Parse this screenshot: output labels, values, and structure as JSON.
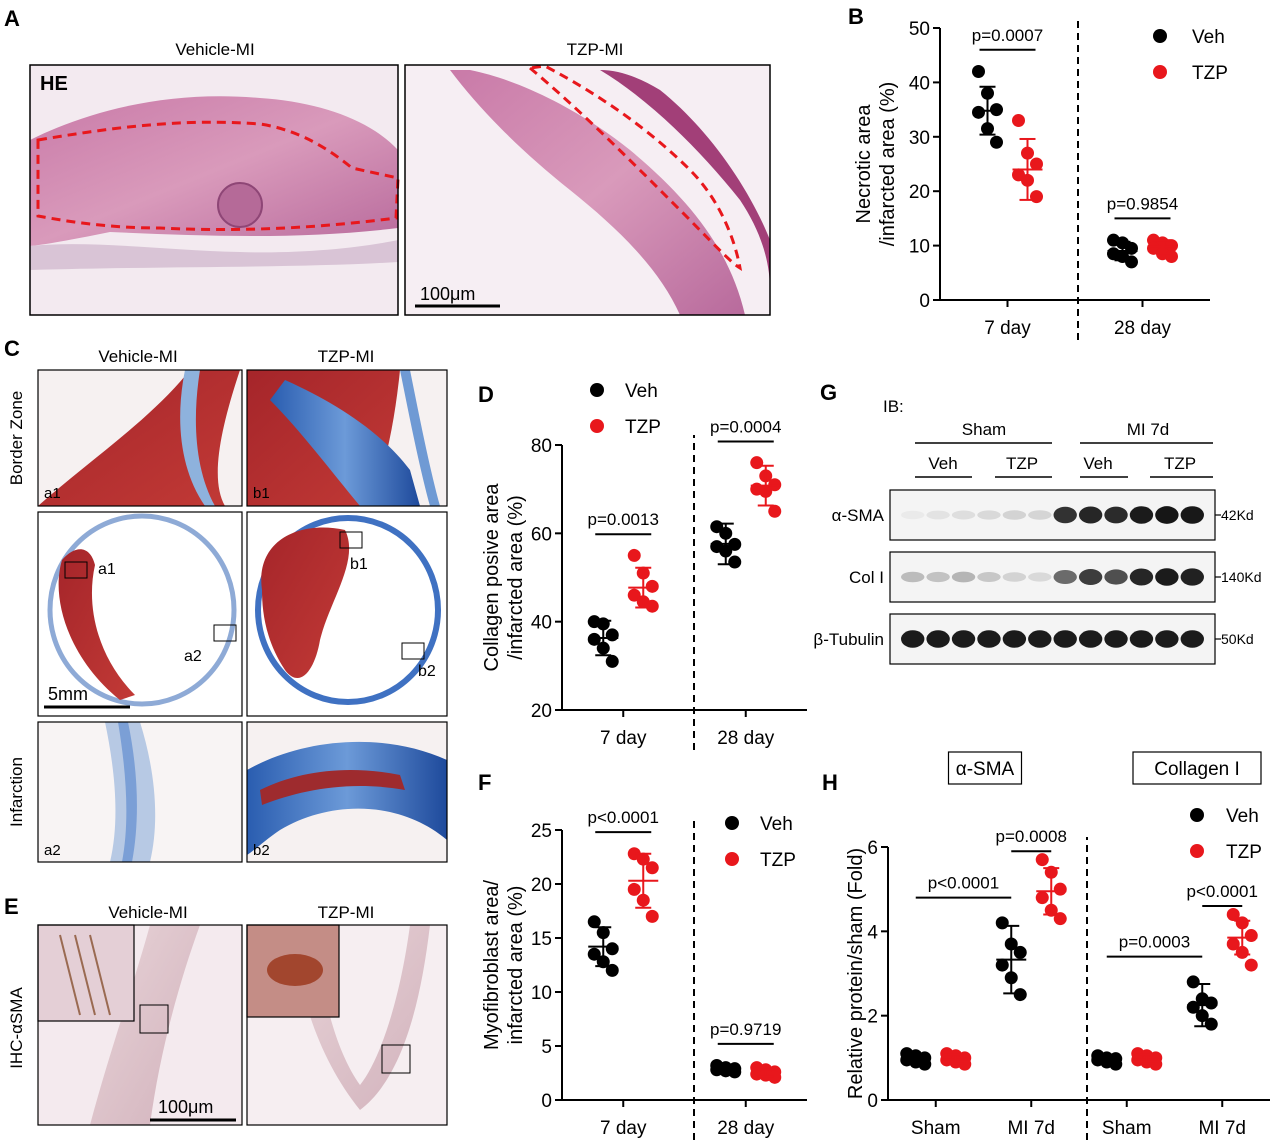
{
  "panels": {
    "A": {
      "letter": "A",
      "stain": "HE",
      "col_titles": [
        "Vehicle-MI",
        "TZP-MI"
      ],
      "scale_bar": "100μm"
    },
    "C": {
      "letter": "C",
      "col_titles": [
        "Vehicle-MI",
        "TZP-MI"
      ],
      "row_labels": [
        "Border Zone",
        "Infarction"
      ],
      "tile_labels": [
        "a1",
        "b1",
        "a2",
        "b2"
      ],
      "box_labels": [
        "a1",
        "a2",
        "b1",
        "b2"
      ],
      "scale_bar": "5mm"
    },
    "E": {
      "letter": "E",
      "col_titles": [
        "Vehicle-MI",
        "TZP-MI"
      ],
      "row_label": "IHC-αSMA",
      "scale_bar": "100μm"
    },
    "G": {
      "letter": "G",
      "ib": "IB:",
      "groups": [
        "Sham",
        "MI 7d"
      ],
      "subgroups": [
        "Veh",
        "TZP",
        "Veh",
        "TZP"
      ],
      "rows": [
        {
          "label": "α-SMA",
          "size": "42Kd"
        },
        {
          "label": "Col I",
          "size": "140Kd"
        },
        {
          "label": "β-Tubulin",
          "size": "50Kd"
        }
      ],
      "band_intensity": [
        [
          0.05,
          0.08,
          0.1,
          0.12,
          0.15,
          0.14,
          0.85,
          0.9,
          0.88,
          0.95,
          0.97,
          0.96
        ],
        [
          0.25,
          0.22,
          0.28,
          0.2,
          0.15,
          0.12,
          0.6,
          0.8,
          0.72,
          0.9,
          0.95,
          0.92
        ],
        [
          0.95,
          0.95,
          0.95,
          0.95,
          0.95,
          0.95,
          0.95,
          0.95,
          0.95,
          0.95,
          0.95,
          0.95
        ]
      ]
    }
  },
  "colors": {
    "veh": "#000000",
    "tzp": "#e8171c"
  },
  "chart_data": [
    {
      "id": "B",
      "letter": "B",
      "type": "scatter",
      "ylabel": [
        "Necrotic area",
        "/infarcted area (%)"
      ],
      "ylim": [
        0,
        50
      ],
      "yticks": [
        "0",
        "10",
        "20",
        "30",
        "40",
        "50"
      ],
      "categories": [
        "7 day",
        "28 day"
      ],
      "legend": [
        "Veh",
        "TZP"
      ],
      "legend_position": "top-right",
      "series": [
        {
          "name": "Veh",
          "color": "#000000",
          "groups": [
            [
              42,
              38,
              35,
              34.5,
              31.5,
              29
            ],
            [
              11,
              10.5,
              9.5,
              8.5,
              8,
              7
            ]
          ],
          "mean": [
            34.8,
            9.0
          ],
          "sd": [
            4.4,
            1.7
          ]
        },
        {
          "name": "TZP",
          "color": "#e8171c",
          "groups": [
            [
              33,
              27,
              25,
              23,
              22,
              19
            ],
            [
              11,
              10.5,
              10,
              9.5,
              8.5,
              8
            ]
          ],
          "mean": [
            24.0,
            9.8
          ],
          "sd": [
            5.6,
            1.2
          ]
        }
      ],
      "pvalues": [
        "p=0.0007",
        "p=0.9854"
      ]
    },
    {
      "id": "D",
      "letter": "D",
      "type": "scatter",
      "ylabel": [
        "Collagen posive area",
        "/infarcted area (%)"
      ],
      "ylim": [
        20,
        80
      ],
      "yticks": [
        "20",
        "40",
        "60",
        "80"
      ],
      "categories": [
        "7 day",
        "28 day"
      ],
      "legend": [
        "Veh",
        "TZP"
      ],
      "legend_position": "top-left",
      "series": [
        {
          "name": "Veh",
          "color": "#000000",
          "groups": [
            [
              40,
              39.5,
              37,
              36,
              34,
              31
            ],
            [
              61.5,
              60,
              57.5,
              57,
              56,
              53.5
            ]
          ],
          "mean": [
            36.3,
            57.6
          ],
          "sd": [
            3.9,
            4.6
          ]
        },
        {
          "name": "TZP",
          "color": "#e8171c",
          "groups": [
            [
              55,
              51,
              48,
              46,
              44.5,
              43.5
            ],
            [
              76,
              73,
              71,
              70,
              69.5,
              65
            ]
          ],
          "mean": [
            47.7,
            70.8
          ],
          "sd": [
            4.5,
            4.5
          ]
        }
      ],
      "pvalues": [
        "p=0.0013",
        "p=0.0004"
      ]
    },
    {
      "id": "F",
      "letter": "F",
      "type": "scatter",
      "ylabel": [
        "Myofibroblast area/",
        "infarcted area (%)"
      ],
      "ylim": [
        0,
        25
      ],
      "yticks": [
        "0",
        "5",
        "10",
        "15",
        "20",
        "25"
      ],
      "categories": [
        "7 day",
        "28 day"
      ],
      "legend": [
        "Veh",
        "TZP"
      ],
      "legend_position": "top-right",
      "series": [
        {
          "name": "Veh",
          "color": "#000000",
          "groups": [
            [
              16.5,
              15.5,
              14,
              13.5,
              12.8,
              12
            ],
            [
              3.2,
              3.0,
              2.9,
              2.8,
              2.7,
              2.6
            ]
          ],
          "mean": [
            14.2,
            2.9
          ],
          "sd": [
            1.8,
            0.3
          ]
        },
        {
          "name": "TZP",
          "color": "#e8171c",
          "groups": [
            [
              22.8,
              22.3,
              21.5,
              19.5,
              18.5,
              17
            ],
            [
              3.0,
              2.8,
              2.6,
              2.4,
              2.3,
              2.1
            ]
          ],
          "mean": [
            20.3,
            2.5
          ],
          "sd": [
            2.5,
            0.3
          ]
        }
      ],
      "pvalues": [
        "p<0.0001",
        "p=0.9719"
      ]
    },
    {
      "id": "H",
      "letter": "H",
      "type": "scatter",
      "ylabel": [
        "Relative protein/sham (Fold)"
      ],
      "ylim": [
        0,
        6
      ],
      "yticks": [
        "0",
        "2",
        "4",
        "6"
      ],
      "categories": [
        "Sham",
        "MI 7d",
        "Sham",
        "MI 7d"
      ],
      "section_titles": [
        "α-SMA",
        "Collagen I"
      ],
      "legend": [
        "Veh",
        "TZP"
      ],
      "legend_position": "top-right",
      "series": [
        {
          "name": "Veh",
          "color": "#000000",
          "groups": [
            [
              1.1,
              1.05,
              1.0,
              0.95,
              0.9,
              0.85
            ],
            [
              4.2,
              3.7,
              3.5,
              3.2,
              2.9,
              2.5
            ],
            [
              1.05,
              1.0,
              0.98,
              0.95,
              0.9,
              0.85
            ],
            [
              2.8,
              2.4,
              2.3,
              2.2,
              2.0,
              1.8
            ]
          ],
          "mean": [
            0.97,
            3.33,
            0.95,
            2.25
          ],
          "sd": [
            0.1,
            0.8,
            0.1,
            0.5
          ]
        },
        {
          "name": "TZP",
          "color": "#e8171c",
          "groups": [
            [
              1.1,
              1.05,
              1.0,
              0.95,
              0.9,
              0.85
            ],
            [
              5.7,
              5.4,
              5.0,
              4.8,
              4.5,
              4.3
            ],
            [
              1.1,
              1.05,
              1.0,
              0.95,
              0.9,
              0.85
            ],
            [
              4.4,
              4.2,
              3.9,
              3.7,
              3.5,
              3.2
            ]
          ],
          "mean": [
            0.97,
            4.95,
            0.97,
            3.85
          ],
          "sd": [
            0.1,
            0.55,
            0.1,
            0.4
          ]
        }
      ],
      "pvalues": [
        "p<0.0001",
        "p=0.0008",
        "p=0.0003",
        "p<0.0001"
      ]
    }
  ]
}
